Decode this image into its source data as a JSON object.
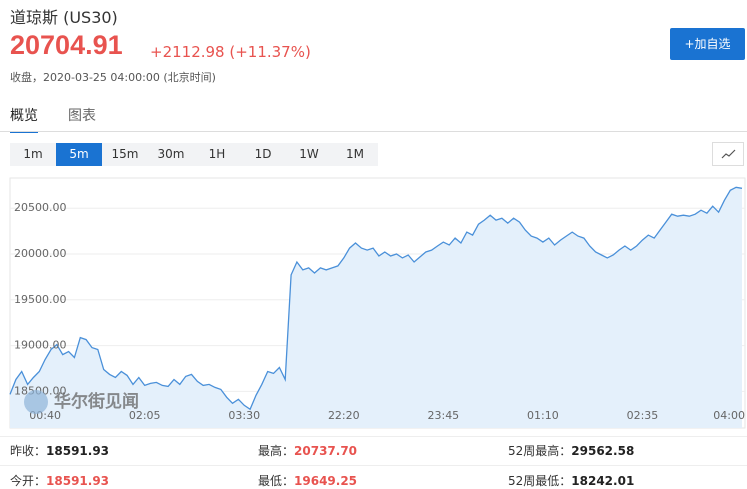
{
  "header": {
    "title": "道琼斯 (US30)",
    "price": "20704.91",
    "change": "+2112.98 (+11.37%)",
    "timestamp": "收盘，2020-03-25 04:00:00 (北京时间)",
    "watch_button": "+加自选"
  },
  "tabs": [
    "概览",
    "图表"
  ],
  "intervals": [
    "1m",
    "5m",
    "15m",
    "30m",
    "1H",
    "1D",
    "1W",
    "1M"
  ],
  "chart_data": {
    "type": "area",
    "color": "#4a90d9",
    "fill": "#e4f0fb",
    "watermark": "华尔街见闻",
    "grid": true,
    "ylim": [
      18100,
      20830
    ],
    "yticks": [
      {
        "value": 18500,
        "label": "18500.00"
      },
      {
        "value": 19000,
        "label": "19000.00"
      },
      {
        "value": 19500,
        "label": "19500.00"
      },
      {
        "value": 20000,
        "label": "20000.00"
      },
      {
        "value": 20500,
        "label": "20500.00"
      }
    ],
    "categories": [
      null,
      null,
      null,
      null,
      null,
      null,
      "00:40",
      null,
      null,
      null,
      null,
      null,
      null,
      null,
      null,
      null,
      null,
      null,
      null,
      null,
      null,
      null,
      null,
      "02:05",
      null,
      null,
      null,
      null,
      null,
      null,
      null,
      null,
      null,
      null,
      null,
      null,
      null,
      null,
      null,
      null,
      "03:30",
      null,
      null,
      null,
      null,
      null,
      null,
      null,
      null,
      null,
      null,
      null,
      null,
      null,
      null,
      null,
      null,
      "22:20",
      null,
      null,
      null,
      null,
      null,
      null,
      null,
      null,
      null,
      null,
      null,
      null,
      null,
      null,
      null,
      null,
      "23:45",
      null,
      null,
      null,
      null,
      null,
      null,
      null,
      null,
      null,
      null,
      null,
      null,
      null,
      null,
      null,
      null,
      "01:10",
      null,
      null,
      null,
      null,
      null,
      null,
      null,
      null,
      null,
      null,
      null,
      null,
      null,
      null,
      null,
      null,
      "02:35",
      null,
      null,
      null,
      null,
      null,
      null,
      null,
      null,
      null,
      null,
      null,
      null,
      null,
      null,
      null,
      null,
      "04:00"
    ],
    "values": [
      18467,
      18630,
      18717,
      18576,
      18652,
      18717,
      18848,
      18957,
      19011,
      18902,
      18935,
      18870,
      19087,
      19065,
      18978,
      18957,
      18739,
      18685,
      18652,
      18717,
      18674,
      18576,
      18652,
      18565,
      18587,
      18598,
      18565,
      18554,
      18630,
      18576,
      18663,
      18685,
      18609,
      18565,
      18576,
      18543,
      18522,
      18435,
      18370,
      18413,
      18348,
      18304,
      18457,
      18576,
      18717,
      18696,
      18761,
      18630,
      19772,
      19913,
      19826,
      19848,
      19793,
      19848,
      19826,
      19848,
      19870,
      19957,
      20065,
      20120,
      20065,
      20043,
      20065,
      19978,
      20022,
      19978,
      20000,
      19957,
      19989,
      19913,
      19967,
      20022,
      20043,
      20087,
      20130,
      20098,
      20174,
      20120,
      20239,
      20207,
      20326,
      20370,
      20424,
      20370,
      20391,
      20337,
      20391,
      20348,
      20261,
      20196,
      20174,
      20130,
      20174,
      20098,
      20152,
      20196,
      20239,
      20196,
      20174,
      20087,
      20022,
      19989,
      19957,
      19989,
      20043,
      20087,
      20043,
      20087,
      20152,
      20207,
      20174,
      20261,
      20348,
      20435,
      20413,
      20424,
      20413,
      20435,
      20478,
      20446,
      20522,
      20457,
      20587,
      20696,
      20728,
      20717
    ]
  },
  "stats": [
    [
      {
        "label": "昨收：",
        "value": "18591.93"
      },
      {
        "label": "最高：",
        "value": "20737.70"
      },
      {
        "label": "52周最高：",
        "value": "29562.58"
      }
    ],
    [
      {
        "label": "今开：",
        "value": "18591.93"
      },
      {
        "label": "最低：",
        "value": "19649.25"
      },
      {
        "label": "52周最低：",
        "value": "18242.01"
      }
    ]
  ]
}
